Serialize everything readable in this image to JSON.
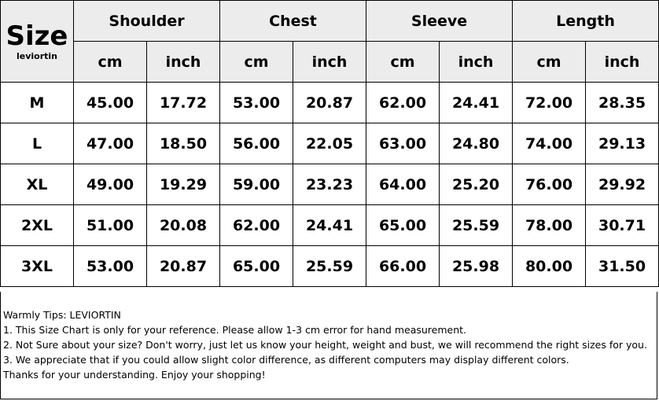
{
  "table": {
    "title": "Size",
    "brand": "leviortin",
    "groups": [
      "Shoulder",
      "Chest",
      "Sleeve",
      "Length"
    ],
    "units": [
      "cm",
      "inch"
    ],
    "rows": [
      [
        "M",
        "45.00",
        "17.72",
        "53.00",
        "20.87",
        "62.00",
        "24.41",
        "72.00",
        "28.35"
      ],
      [
        "L",
        "47.00",
        "18.50",
        "56.00",
        "22.05",
        "63.00",
        "24.80",
        "74.00",
        "29.13"
      ],
      [
        "XL",
        "49.00",
        "19.29",
        "59.00",
        "23.23",
        "64.00",
        "25.20",
        "76.00",
        "29.92"
      ],
      [
        "2XL",
        "51.00",
        "20.08",
        "62.00",
        "24.41",
        "65.00",
        "25.59",
        "78.00",
        "30.71"
      ],
      [
        "3XL",
        "53.00",
        "20.87",
        "65.00",
        "25.59",
        "66.00",
        "25.98",
        "80.00",
        "31.50"
      ]
    ]
  },
  "tips": {
    "heading": "Warmly Tips: LEVIORTIN",
    "lines": [
      "1. This Size Chart is only for your reference. Please allow 1-3 cm error for hand measurement.",
      "2. Not Sure about your size? Don't worry, just let us know your height, weight and bust, we will recommend the right sizes for you.",
      "3. We appreciate that if you could allow slight color difference, as different computers may display different colors."
    ],
    "closing": "Thanks for your understanding. Enjoy your shopping!"
  }
}
